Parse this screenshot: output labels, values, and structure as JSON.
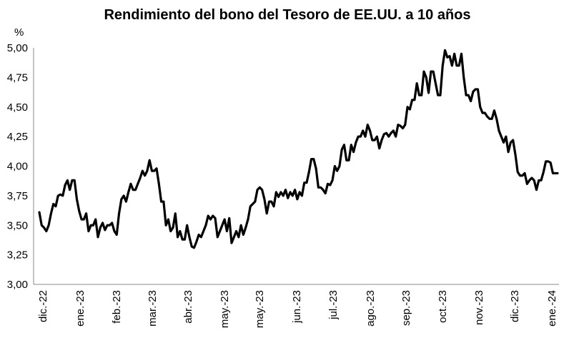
{
  "chart_data": {
    "type": "line",
    "title": "Rendimiento del bono del Tesoro de EE.UU. a 10 años",
    "ylabel": "%",
    "xlabel": "",
    "ylim": [
      3.0,
      5.0
    ],
    "y_ticks": [
      "3,00",
      "3,25",
      "3,50",
      "3,75",
      "4,00",
      "4,25",
      "4,50",
      "4,75",
      "5,00"
    ],
    "y_tick_values": [
      3.0,
      3.25,
      3.5,
      3.75,
      4.0,
      4.25,
      4.5,
      4.75,
      5.0
    ],
    "x_ticks": [
      "dic.-22",
      "ene.-23",
      "feb.-23",
      "mar.-23",
      "abr.-23",
      "may.-23",
      "may.-23",
      "jun.-23",
      "jul.-23",
      "ago.-23",
      "sep.-23",
      "oct.-23",
      "nov.-23",
      "dic.-23",
      "ene.-24"
    ],
    "grid": false,
    "line_color": "#000000",
    "series": [
      {
        "values": [
          3.61,
          3.5,
          3.48,
          3.45,
          3.5,
          3.6,
          3.68,
          3.66,
          3.75,
          3.76,
          3.75,
          3.84,
          3.88,
          3.8,
          3.88,
          3.88,
          3.72,
          3.62,
          3.55,
          3.55,
          3.6,
          3.45,
          3.5,
          3.5,
          3.55,
          3.4,
          3.48,
          3.52,
          3.46,
          3.5,
          3.5,
          3.52,
          3.45,
          3.42,
          3.6,
          3.72,
          3.75,
          3.7,
          3.78,
          3.85,
          3.8,
          3.8,
          3.85,
          3.9,
          3.96,
          3.92,
          3.96,
          4.05,
          3.96,
          3.96,
          3.98,
          3.85,
          3.7,
          3.7,
          3.5,
          3.55,
          3.45,
          3.48,
          3.6,
          3.4,
          3.45,
          3.38,
          3.38,
          3.5,
          3.4,
          3.32,
          3.31,
          3.36,
          3.42,
          3.4,
          3.45,
          3.5,
          3.58,
          3.55,
          3.58,
          3.56,
          3.4,
          3.45,
          3.5,
          3.55,
          3.45,
          3.56,
          3.35,
          3.4,
          3.45,
          3.4,
          3.5,
          3.42,
          3.48,
          3.55,
          3.66,
          3.68,
          3.7,
          3.8,
          3.82,
          3.8,
          3.72,
          3.6,
          3.7,
          3.7,
          3.66,
          3.78,
          3.74,
          3.78,
          3.75,
          3.8,
          3.73,
          3.78,
          3.75,
          3.8,
          3.72,
          3.78,
          3.75,
          3.86,
          3.86,
          3.95,
          4.06,
          4.06,
          3.98,
          3.82,
          3.82,
          3.8,
          3.77,
          3.85,
          3.84,
          3.88,
          4.0,
          3.96,
          4.0,
          4.14,
          4.18,
          4.05,
          4.05,
          4.18,
          4.12,
          4.2,
          4.25,
          4.25,
          4.3,
          4.25,
          4.35,
          4.3,
          4.22,
          4.22,
          4.25,
          4.15,
          4.22,
          4.27,
          4.28,
          4.25,
          4.28,
          4.3,
          4.25,
          4.35,
          4.34,
          4.32,
          4.35,
          4.5,
          4.48,
          4.56,
          4.56,
          4.7,
          4.6,
          4.6,
          4.8,
          4.75,
          4.62,
          4.8,
          4.8,
          4.7,
          4.6,
          4.6,
          4.85,
          4.98,
          4.92,
          4.93,
          4.85,
          4.95,
          4.85,
          4.85,
          4.95,
          4.75,
          4.6,
          4.6,
          4.55,
          4.63,
          4.65,
          4.65,
          4.5,
          4.45,
          4.45,
          4.42,
          4.4,
          4.4,
          4.47,
          4.4,
          4.3,
          4.25,
          4.2,
          4.25,
          4.12,
          4.2,
          4.22,
          4.1,
          3.95,
          3.92,
          3.92,
          3.94,
          3.85,
          3.88,
          3.9,
          3.88,
          3.8,
          3.88,
          3.88,
          3.95,
          4.04,
          4.04,
          4.03,
          3.94,
          3.94,
          3.94
        ],
        "color": "#000000"
      }
    ]
  }
}
